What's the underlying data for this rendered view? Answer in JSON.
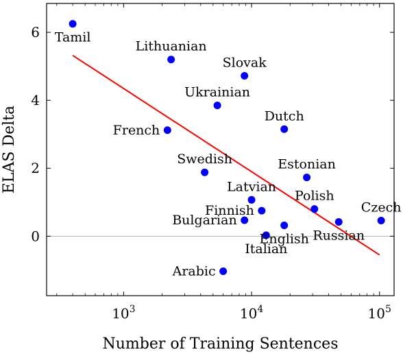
{
  "chart_data": {
    "type": "scatter",
    "title": "",
    "xlabel": "Number of Training Sentences",
    "ylabel": "ELAS Delta",
    "x_scale": "log",
    "xlim": [
      250,
      130000
    ],
    "ylim": [
      -1.75,
      6.85
    ],
    "x_ticks": [
      {
        "value": 1000,
        "base": "10",
        "exp": "3"
      },
      {
        "value": 10000,
        "base": "10",
        "exp": "4"
      },
      {
        "value": 100000,
        "base": "10",
        "exp": "5"
      }
    ],
    "y_ticks": [
      0,
      2,
      4,
      6
    ],
    "grid": "horizontal line at y=0",
    "point_color": "#0000ff",
    "trend_color": "#ff0000",
    "points": [
      {
        "label": "Tamil",
        "x": 400,
        "y": 6.25,
        "label_pos": "below"
      },
      {
        "label": "Lithuanian",
        "x": 2350,
        "y": 5.2,
        "label_pos": "above"
      },
      {
        "label": "Slovak",
        "x": 8800,
        "y": 4.72,
        "label_pos": "above"
      },
      {
        "label": "Ukrainian",
        "x": 5400,
        "y": 3.85,
        "label_pos": "above"
      },
      {
        "label": "Dutch",
        "x": 18000,
        "y": 3.15,
        "label_pos": "above"
      },
      {
        "label": "French",
        "x": 2200,
        "y": 3.12,
        "label_pos": "left"
      },
      {
        "label": "Swedish",
        "x": 4300,
        "y": 1.88,
        "label_pos": "above"
      },
      {
        "label": "Estonian",
        "x": 27000,
        "y": 1.73,
        "label_pos": "above"
      },
      {
        "label": "Latvian",
        "x": 10000,
        "y": 1.07,
        "label_pos": "above"
      },
      {
        "label": "Polish",
        "x": 31000,
        "y": 0.8,
        "label_pos": "above"
      },
      {
        "label": "Finnish",
        "x": 12000,
        "y": 0.75,
        "label_pos": "left"
      },
      {
        "label": "Czech",
        "x": 103000,
        "y": 0.46,
        "label_pos": "above"
      },
      {
        "label": "Bulgarian",
        "x": 8800,
        "y": 0.47,
        "label_pos": "left"
      },
      {
        "label": "Russian",
        "x": 48000,
        "y": 0.42,
        "label_pos": "below"
      },
      {
        "label": "English",
        "x": 18000,
        "y": 0.32,
        "label_pos": "below"
      },
      {
        "label": "Italian",
        "x": 13000,
        "y": 0.03,
        "label_pos": "below"
      },
      {
        "label": "Arabic",
        "x": 6000,
        "y": -1.03,
        "label_pos": "left"
      }
    ],
    "trendline": [
      {
        "x": 400,
        "y": 5.32
      },
      {
        "x": 100000,
        "y": -0.55
      }
    ]
  }
}
